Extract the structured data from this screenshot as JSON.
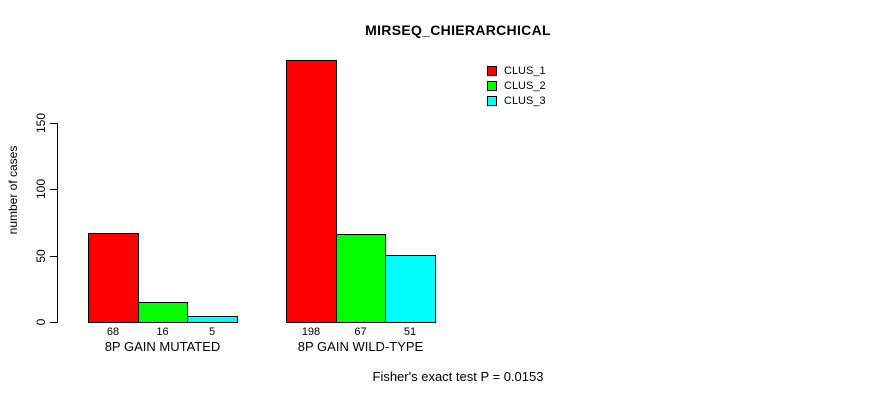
{
  "page": {
    "background_color": "#FFFFFF",
    "text_color": "#000000"
  },
  "chart_data": {
    "type": "bar",
    "title": "MIRSEQ_CHIERARCHICAL",
    "ylabel": "number of cases",
    "xlabel": "",
    "ylim": [
      0,
      150
    ],
    "yticks": [
      0,
      50,
      100,
      150
    ],
    "grid": false,
    "legend_position": "top-right",
    "bar_border_color": "#000000",
    "categories": [
      "8P GAIN MUTATED",
      "8P GAIN WILD-TYPE"
    ],
    "series": [
      {
        "name": "CLUS_1",
        "color": "#FF0000",
        "values": [
          68,
          198
        ]
      },
      {
        "name": "CLUS_2",
        "color": "#00FF00",
        "values": [
          16,
          67
        ]
      },
      {
        "name": "CLUS_3",
        "color": "#00FFFF",
        "values": [
          5,
          51
        ]
      }
    ],
    "bar_value_labels": [
      [
        "68",
        "16",
        "5"
      ],
      [
        "198",
        "67",
        "51"
      ]
    ],
    "annotation": "Fisher's exact test P = 0.0153"
  }
}
